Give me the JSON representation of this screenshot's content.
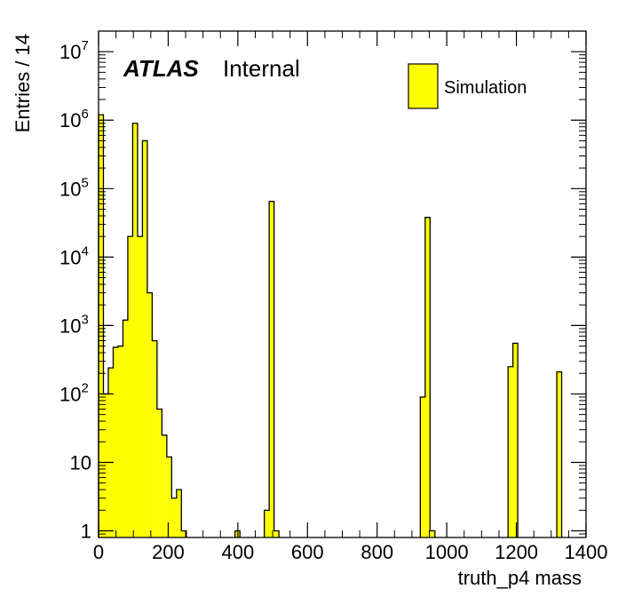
{
  "chart_data": {
    "type": "bar",
    "style": "histogram",
    "xlabel": "truth_p4 mass",
    "ylabel": "Entries / 14",
    "xlim": [
      0,
      1400
    ],
    "ylim": [
      0.8,
      20000000
    ],
    "yscale": "log",
    "bin_width": 14,
    "x_ticks": [
      0,
      200,
      400,
      600,
      800,
      1000,
      1200,
      1400
    ],
    "y_ticks": [
      {
        "value": 1,
        "base": "1",
        "exp": ""
      },
      {
        "value": 10,
        "base": "10",
        "exp": ""
      },
      {
        "value": 100,
        "base": "10",
        "exp": "2"
      },
      {
        "value": 1000,
        "base": "10",
        "exp": "3"
      },
      {
        "value": 10000,
        "base": "10",
        "exp": "4"
      },
      {
        "value": 100000,
        "base": "10",
        "exp": "5"
      },
      {
        "value": 1000000,
        "base": "10",
        "exp": "6"
      },
      {
        "value": 10000000,
        "base": "10",
        "exp": "7"
      }
    ],
    "fill_color": "#ffff00",
    "line_color": "#000000",
    "bins": [
      {
        "x": 0,
        "y": 1200000
      },
      {
        "x": 14,
        "y": 100
      },
      {
        "x": 28,
        "y": 240
      },
      {
        "x": 42,
        "y": 480
      },
      {
        "x": 56,
        "y": 500
      },
      {
        "x": 70,
        "y": 1200
      },
      {
        "x": 84,
        "y": 20000
      },
      {
        "x": 98,
        "y": 900000
      },
      {
        "x": 112,
        "y": 20000
      },
      {
        "x": 126,
        "y": 500000
      },
      {
        "x": 140,
        "y": 3000
      },
      {
        "x": 154,
        "y": 600
      },
      {
        "x": 168,
        "y": 60
      },
      {
        "x": 182,
        "y": 25
      },
      {
        "x": 196,
        "y": 12
      },
      {
        "x": 210,
        "y": 3
      },
      {
        "x": 224,
        "y": 4
      },
      {
        "x": 238,
        "y": 1
      },
      {
        "x": 392,
        "y": 1
      },
      {
        "x": 476,
        "y": 2
      },
      {
        "x": 490,
        "y": 65000
      },
      {
        "x": 504,
        "y": 1
      },
      {
        "x": 924,
        "y": 90
      },
      {
        "x": 938,
        "y": 38000
      },
      {
        "x": 952,
        "y": 1
      },
      {
        "x": 1176,
        "y": 250
      },
      {
        "x": 1190,
        "y": 550
      },
      {
        "x": 1316,
        "y": 210
      }
    ],
    "legend": {
      "entries": [
        "Simulation"
      ],
      "position": "top-right"
    },
    "annotation": {
      "brand": "ATLAS",
      "status": "Internal"
    }
  }
}
